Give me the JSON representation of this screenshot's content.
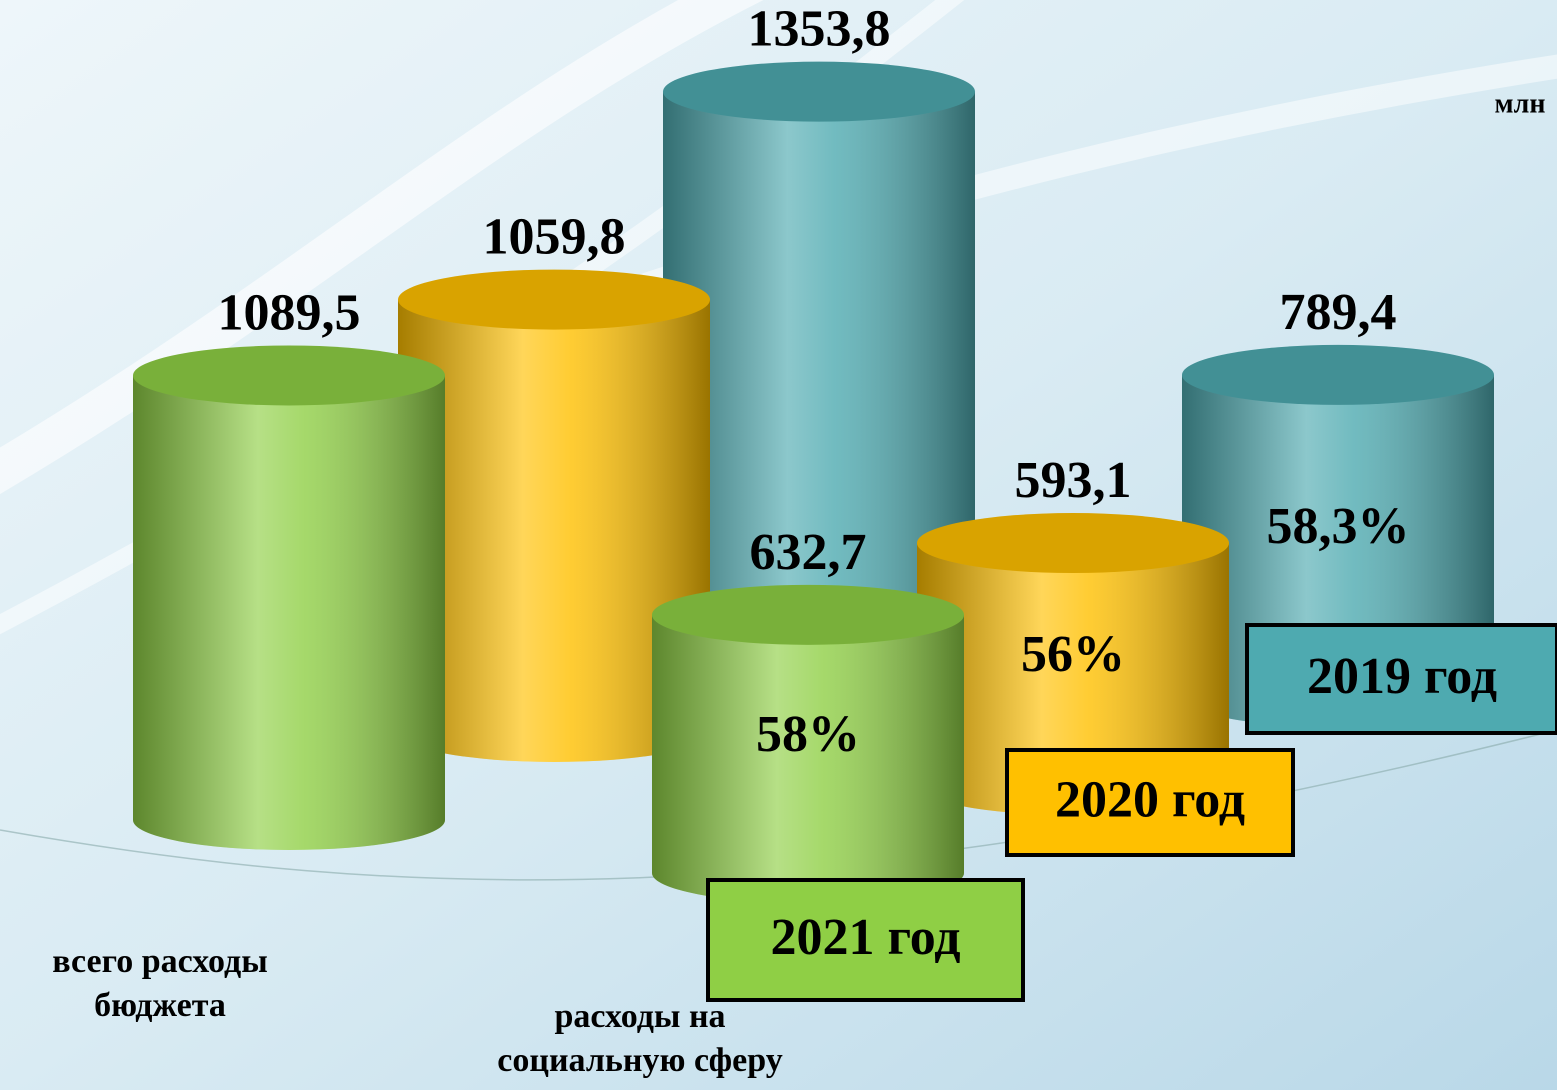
{
  "chart_data": {
    "type": "cylinder",
    "unit": "млн",
    "categories": [
      "всего расходы бюджета",
      "расходы на социальную сферу"
    ],
    "series": [
      {
        "name": "2021 год",
        "color": "#8fcf45",
        "values": [
          1089.5,
          632.7
        ],
        "value_labels": [
          "1089,5",
          "632,7"
        ],
        "shares": [
          null,
          58
        ],
        "share_labels": [
          null,
          "58%"
        ]
      },
      {
        "name": "2020 год",
        "color": "#ffc000",
        "values": [
          1059.8,
          593.1
        ],
        "value_labels": [
          "1059,8",
          "593,1"
        ],
        "shares": [
          null,
          56
        ],
        "share_labels": [
          null,
          "56%"
        ]
      },
      {
        "name": "2019 год",
        "color": "#4eaab0",
        "values": [
          1353.8,
          789.4
        ],
        "value_labels": [
          "1353,8",
          "789,4"
        ],
        "shares": [
          null,
          58.3
        ],
        "share_labels": [
          null,
          "58,3%"
        ]
      }
    ]
  }
}
